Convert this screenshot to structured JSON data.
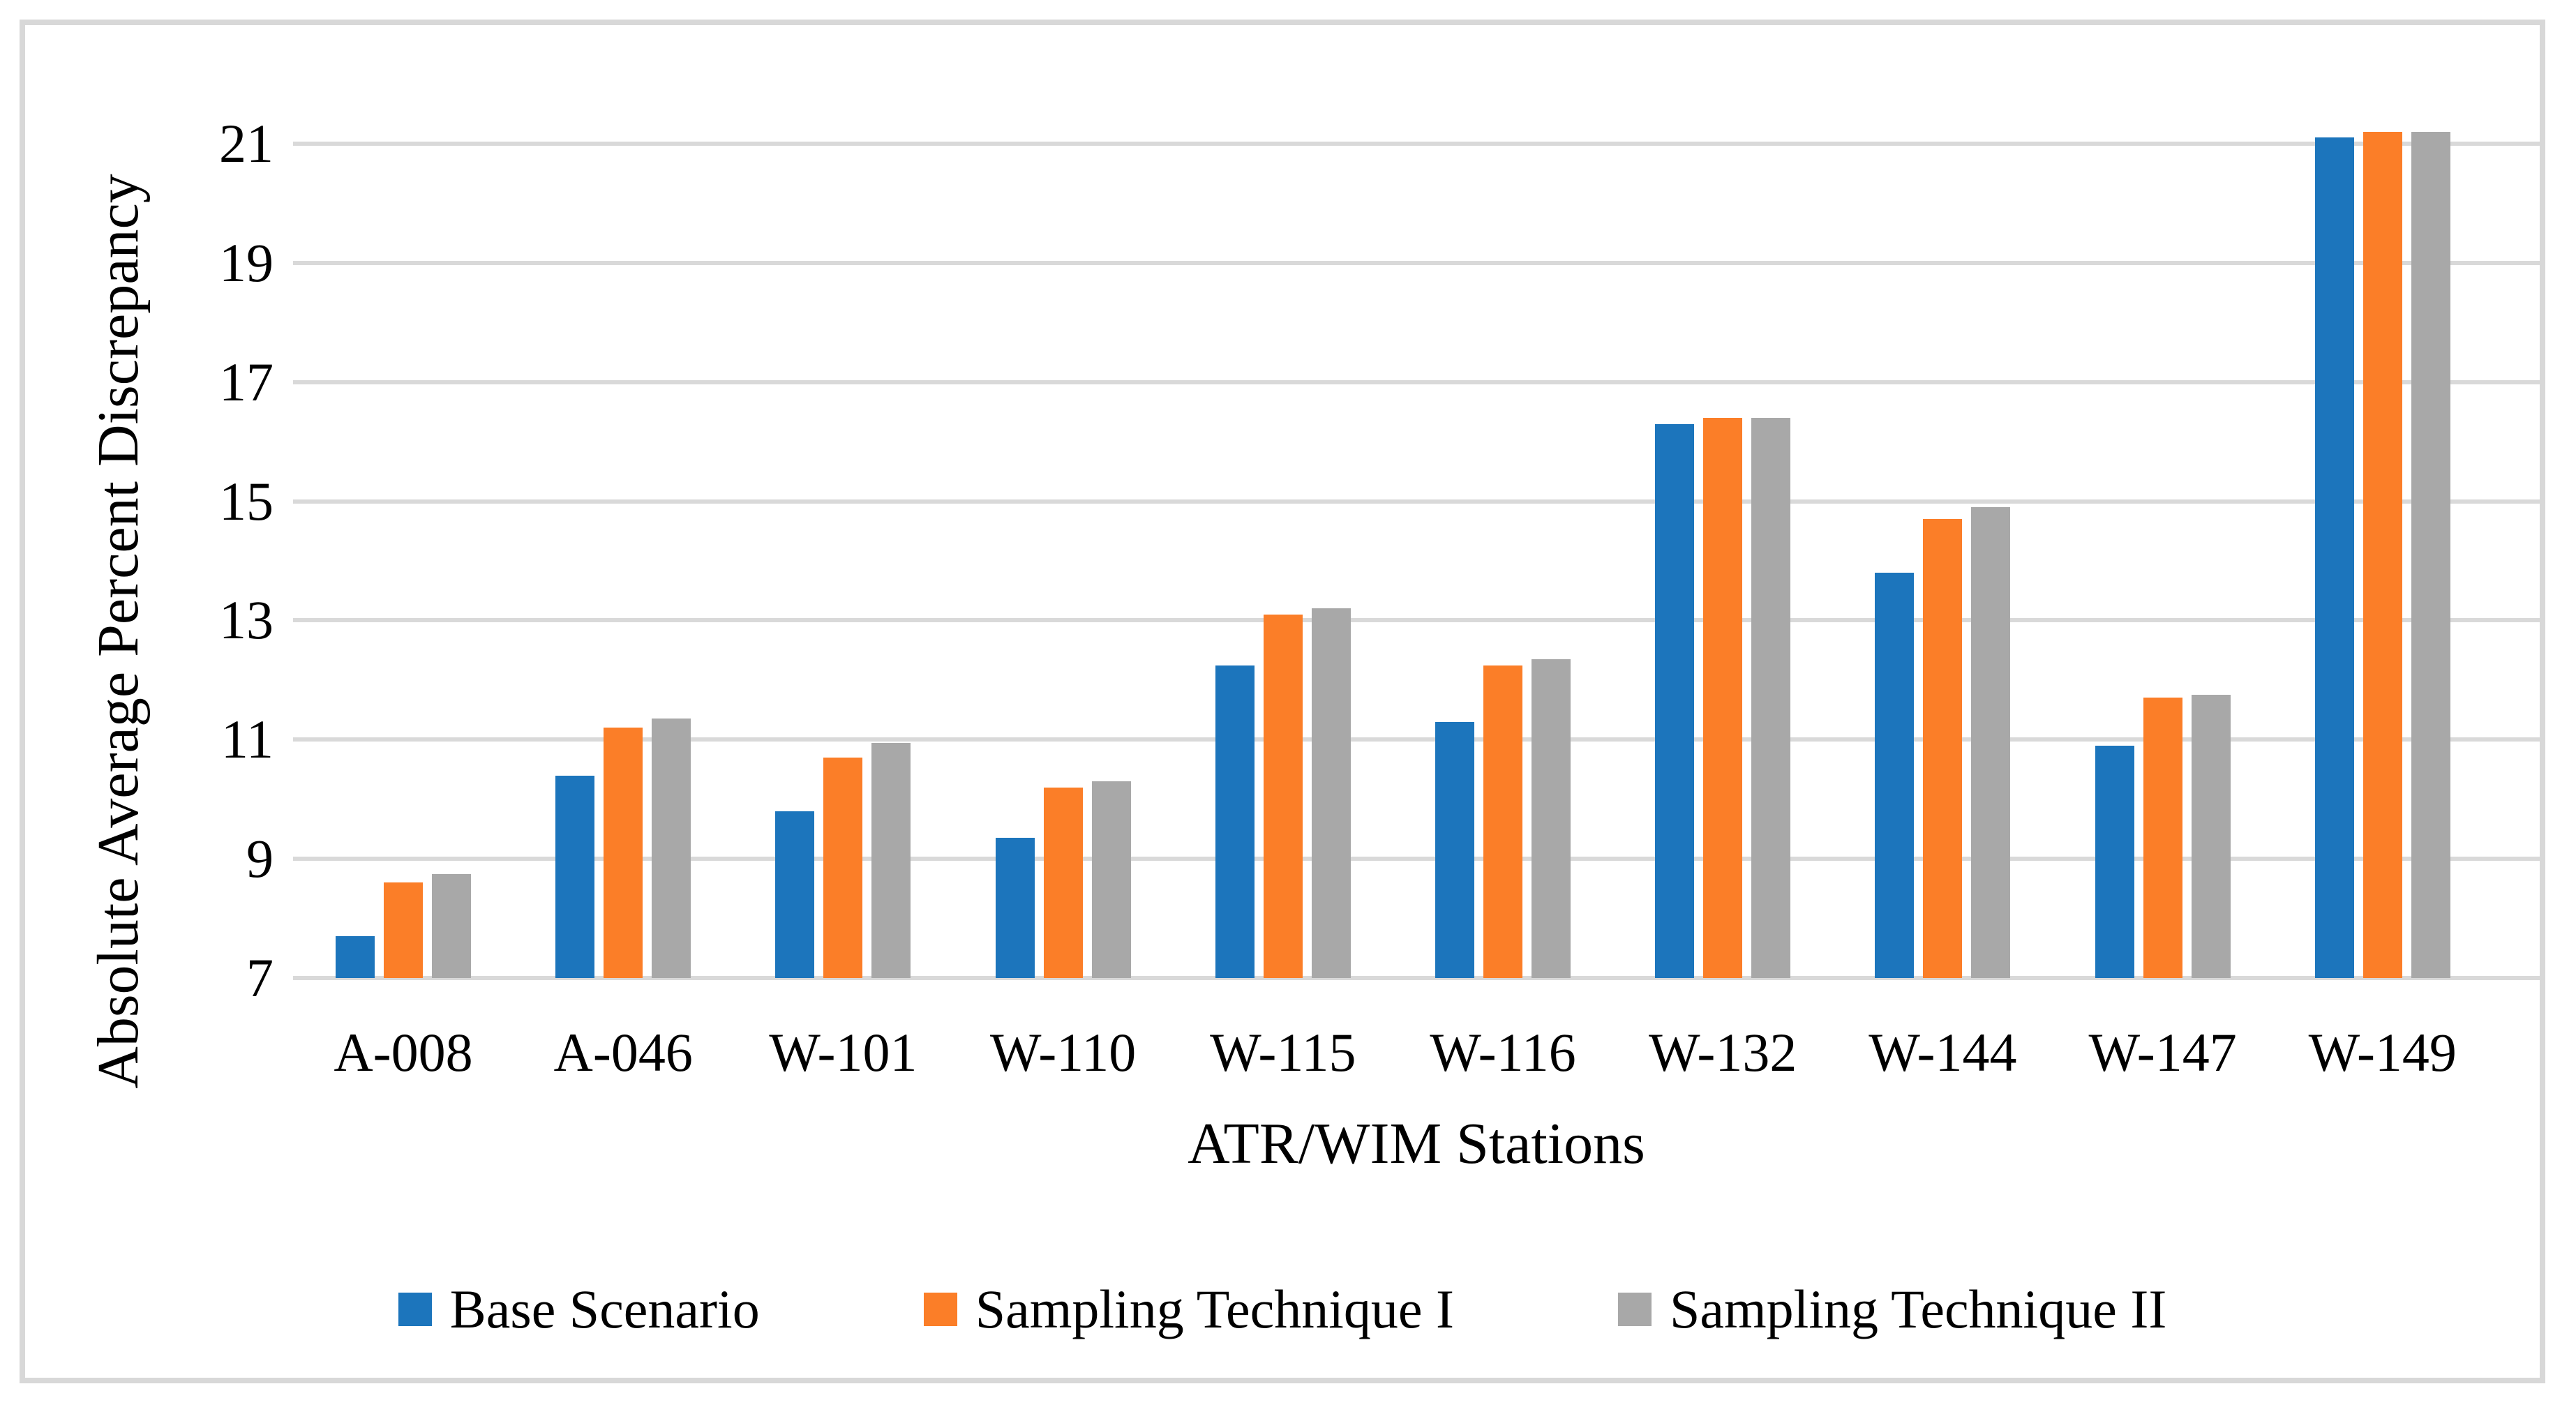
{
  "chart_data": {
    "type": "bar",
    "title": "",
    "xlabel": "ATR/WIM Stations",
    "ylabel": "Absolute Average Percent Discrepancy",
    "categories": [
      "A-008",
      "A-046",
      "W-101",
      "W-110",
      "W-115",
      "W-116",
      "W-132",
      "W-144",
      "W-147",
      "W-149"
    ],
    "series": [
      {
        "name": "Base Scenario",
        "color": "#1c75bc",
        "values": [
          7.7,
          10.4,
          9.8,
          9.35,
          12.25,
          11.3,
          16.3,
          13.8,
          10.9,
          21.1
        ]
      },
      {
        "name": "Sampling Technique I",
        "color": "#fb7e28",
        "values": [
          8.6,
          11.2,
          10.7,
          10.2,
          13.1,
          12.25,
          16.4,
          14.7,
          11.7,
          21.2
        ]
      },
      {
        "name": "Sampling Technique II",
        "color": "#a8a8a8",
        "values": [
          8.75,
          11.35,
          10.95,
          10.3,
          13.2,
          12.35,
          16.4,
          14.9,
          11.75,
          21.2
        ]
      }
    ],
    "ylim": [
      7,
      21
    ],
    "yticks": [
      7,
      9,
      11,
      13,
      15,
      17,
      19,
      21
    ],
    "grid": "horizontal",
    "grid_color": "#d9d9d9",
    "legend_position": "bottom"
  }
}
